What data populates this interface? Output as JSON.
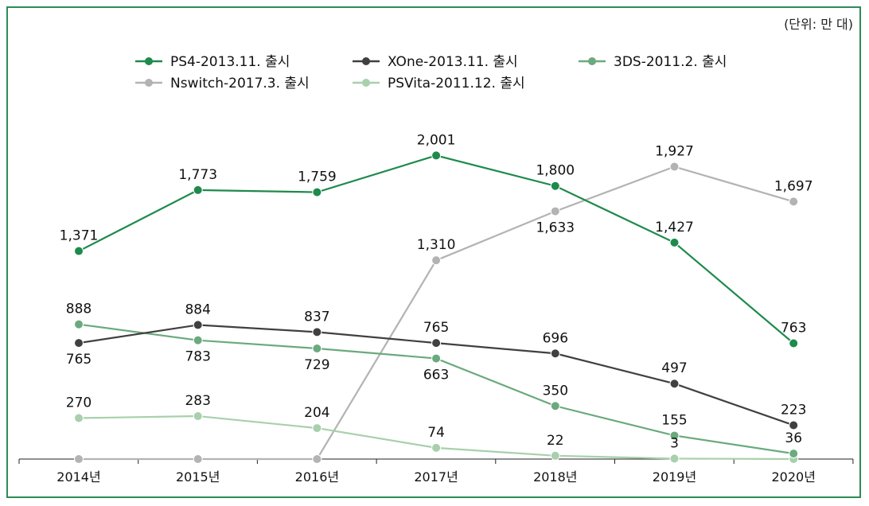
{
  "chart_data": {
    "type": "line",
    "unit_note": "(단위: 만 대)",
    "categories": [
      "2014년",
      "2015년",
      "2016년",
      "2017년",
      "2018년",
      "2019년",
      "2020년"
    ],
    "ylim": [
      0,
      2150
    ],
    "grid": false,
    "legend_position": "top",
    "series": [
      {
        "name": "PS4-2013.11. 출시",
        "color": "#1e8a4c",
        "values": [
          1371,
          1773,
          1759,
          2001,
          1800,
          1427,
          763
        ]
      },
      {
        "name": "XOne-2013.11. 출시",
        "color": "#404040",
        "values": [
          765,
          884,
          837,
          765,
          696,
          497,
          223
        ]
      },
      {
        "name": "3DS-2011.2. 출시",
        "color": "#6aaa7e",
        "values": [
          888,
          783,
          729,
          663,
          350,
          155,
          36
        ]
      },
      {
        "name": "Nswitch-2017.3. 출시",
        "color": "#b3b3b3",
        "values": [
          0,
          0,
          0,
          1310,
          1633,
          1927,
          1697
        ]
      },
      {
        "name": "PSVita-2011.12. 출시",
        "color": "#a8d0ac",
        "values": [
          270,
          283,
          204,
          74,
          22,
          3,
          0
        ]
      }
    ],
    "data_labels": [
      {
        "series": 0,
        "point": 0,
        "text": "1,371",
        "pos": "above"
      },
      {
        "series": 0,
        "point": 1,
        "text": "1,773",
        "pos": "above"
      },
      {
        "series": 0,
        "point": 2,
        "text": "1,759",
        "pos": "above"
      },
      {
        "series": 0,
        "point": 3,
        "text": "2,001",
        "pos": "above"
      },
      {
        "series": 0,
        "point": 4,
        "text": "1,800",
        "pos": "above"
      },
      {
        "series": 0,
        "point": 5,
        "text": "1,427",
        "pos": "above"
      },
      {
        "series": 0,
        "point": 6,
        "text": "763",
        "pos": "above"
      },
      {
        "series": 1,
        "point": 0,
        "text": "765",
        "pos": "below"
      },
      {
        "series": 1,
        "point": 1,
        "text": "884",
        "pos": "above"
      },
      {
        "series": 1,
        "point": 2,
        "text": "837",
        "pos": "above"
      },
      {
        "series": 1,
        "point": 3,
        "text": "765",
        "pos": "above"
      },
      {
        "series": 1,
        "point": 4,
        "text": "696",
        "pos": "above"
      },
      {
        "series": 1,
        "point": 5,
        "text": "497",
        "pos": "above"
      },
      {
        "series": 1,
        "point": 6,
        "text": "223",
        "pos": "above"
      },
      {
        "series": 2,
        "point": 0,
        "text": "888",
        "pos": "above"
      },
      {
        "series": 2,
        "point": 1,
        "text": "783",
        "pos": "below"
      },
      {
        "series": 2,
        "point": 2,
        "text": "729",
        "pos": "below"
      },
      {
        "series": 2,
        "point": 3,
        "text": "663",
        "pos": "below"
      },
      {
        "series": 2,
        "point": 4,
        "text": "350",
        "pos": "above"
      },
      {
        "series": 2,
        "point": 5,
        "text": "155",
        "pos": "above"
      },
      {
        "series": 2,
        "point": 6,
        "text": "36",
        "pos": "above"
      },
      {
        "series": 3,
        "point": 3,
        "text": "1,310",
        "pos": "above"
      },
      {
        "series": 3,
        "point": 4,
        "text": "1,633",
        "pos": "below"
      },
      {
        "series": 3,
        "point": 5,
        "text": "1,927",
        "pos": "above"
      },
      {
        "series": 3,
        "point": 6,
        "text": "1,697",
        "pos": "above"
      },
      {
        "series": 4,
        "point": 0,
        "text": "270",
        "pos": "above"
      },
      {
        "series": 4,
        "point": 1,
        "text": "283",
        "pos": "above"
      },
      {
        "series": 4,
        "point": 2,
        "text": "204",
        "pos": "above"
      },
      {
        "series": 4,
        "point": 3,
        "text": "74",
        "pos": "above"
      },
      {
        "series": 4,
        "point": 4,
        "text": "22",
        "pos": "above"
      },
      {
        "series": 4,
        "point": 5,
        "text": "3",
        "pos": "above"
      }
    ]
  }
}
